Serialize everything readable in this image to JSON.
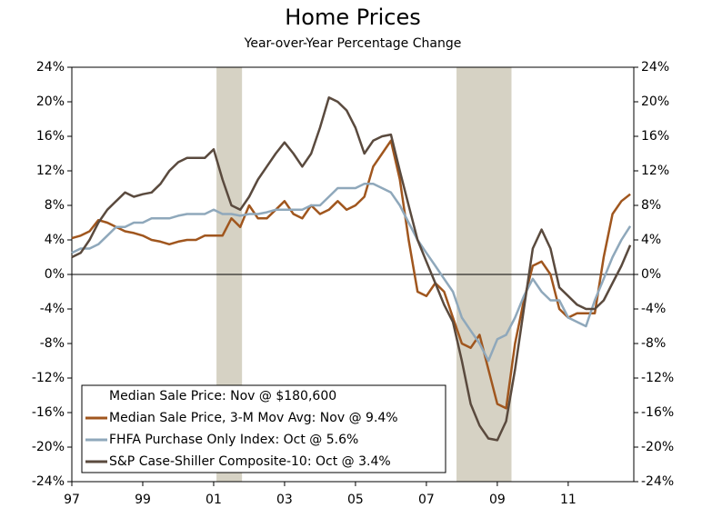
{
  "chart_data": {
    "type": "line",
    "title": "Home Prices",
    "subtitle": "Year-over-Year Percentage Change",
    "legend_note": "Median Sale Price: Nov @ $180,600",
    "x": [
      1997,
      1997.25,
      1997.5,
      1997.75,
      1998,
      1998.25,
      1998.5,
      1998.75,
      1999,
      1999.25,
      1999.5,
      1999.75,
      2000,
      2000.25,
      2000.5,
      2000.75,
      2001,
      2001.25,
      2001.5,
      2001.75,
      2002,
      2002.25,
      2002.5,
      2002.75,
      2003,
      2003.25,
      2003.5,
      2003.75,
      2004,
      2004.25,
      2004.5,
      2004.75,
      2005,
      2005.25,
      2005.5,
      2005.75,
      2006,
      2006.25,
      2006.5,
      2006.75,
      2007,
      2007.25,
      2007.5,
      2007.75,
      2008,
      2008.25,
      2008.5,
      2008.75,
      2009,
      2009.25,
      2009.5,
      2009.75,
      2010,
      2010.25,
      2010.5,
      2010.75,
      2011,
      2011.25,
      2011.5,
      2011.75,
      2012,
      2012.25,
      2012.5,
      2012.75
    ],
    "series": [
      {
        "name": "Median Sale Price, 3-M Mov Avg: Nov @ 9.4%",
        "color": "#a0561e",
        "values": [
          4.2,
          4.5,
          5,
          6.3,
          6,
          5.5,
          5,
          4.8,
          4.5,
          4,
          3.8,
          3.5,
          3.8,
          4,
          4,
          4.5,
          4.5,
          4.5,
          6.5,
          5.5,
          8,
          6.5,
          6.5,
          7.5,
          8.5,
          7,
          6.5,
          8,
          7,
          7.5,
          8.5,
          7.5,
          8,
          9,
          12.5,
          14,
          15.5,
          11,
          4,
          -2,
          -2.5,
          -1,
          -2,
          -5,
          -8,
          -8.5,
          -7,
          -11,
          -15,
          -15.5,
          -8,
          -3,
          1,
          1.5,
          0,
          -4,
          -5,
          -4.5,
          -4.5,
          -4.5,
          2,
          7,
          8.5,
          9.3
        ]
      },
      {
        "name": "FHFA Purchase Only Index: Oct @ 5.6%",
        "color": "#8fa8bb",
        "values": [
          2.5,
          3,
          3,
          3.5,
          4.5,
          5.5,
          5.5,
          6,
          6,
          6.5,
          6.5,
          6.5,
          6.8,
          7,
          7,
          7,
          7.5,
          7,
          7,
          6.8,
          7,
          7,
          7.2,
          7.5,
          7.5,
          7.5,
          7.5,
          8,
          8,
          9,
          10,
          10,
          10,
          10.5,
          10.5,
          10,
          9.5,
          8,
          6,
          4,
          2.5,
          1,
          -0.5,
          -2,
          -5,
          -6.5,
          -8,
          -10,
          -7.5,
          -7,
          -5,
          -2.5,
          -0.5,
          -2,
          -3,
          -3,
          -5,
          -5.5,
          -6,
          -3,
          -0.5,
          2,
          4,
          5.6
        ]
      },
      {
        "name": "S&P Case-Shiller Composite-10: Oct @ 3.4%",
        "color": "#5a4a3e",
        "values": [
          2,
          2.5,
          4,
          6,
          7.5,
          8.5,
          9.5,
          9,
          9.3,
          9.5,
          10.5,
          12,
          13,
          13.5,
          13.5,
          13.5,
          14.5,
          11,
          8,
          7.5,
          9,
          11,
          12.5,
          14,
          15.3,
          14,
          12.5,
          14,
          17,
          20.5,
          20,
          19,
          17,
          14,
          15.5,
          16,
          16.2,
          12,
          8,
          4,
          1.5,
          -1,
          -3.5,
          -5.5,
          -10,
          -15,
          -17.5,
          -19,
          -19.2,
          -17,
          -11,
          -4,
          3,
          5.2,
          3,
          -1.5,
          -2.5,
          -3.5,
          -4,
          -4,
          -3,
          -1,
          1,
          3.4
        ]
      }
    ],
    "shaded_regions": [
      [
        2001.08,
        2001.8
      ],
      [
        2007.85,
        2009.4
      ]
    ],
    "shade_color": "#d6d2c4",
    "xlim": [
      1997,
      2012.85
    ],
    "xticks": [
      {
        "value": 1997,
        "label": "97"
      },
      {
        "value": 1999,
        "label": "99"
      },
      {
        "value": 2001,
        "label": "01"
      },
      {
        "value": 2003,
        "label": "03"
      },
      {
        "value": 2005,
        "label": "05"
      },
      {
        "value": 2007,
        "label": "07"
      },
      {
        "value": 2009,
        "label": "09"
      },
      {
        "value": 2011,
        "label": "11"
      }
    ],
    "ylim": [
      -24,
      24
    ],
    "yticks": [
      {
        "value": -24,
        "label": "-24%"
      },
      {
        "value": -20,
        "label": "-20%"
      },
      {
        "value": -16,
        "label": "-16%"
      },
      {
        "value": -12,
        "label": "-12%"
      },
      {
        "value": -8,
        "label": "-8%"
      },
      {
        "value": -4,
        "label": "-4%"
      },
      {
        "value": 0,
        "label": "0%"
      },
      {
        "value": 4,
        "label": "4%"
      },
      {
        "value": 8,
        "label": "8%"
      },
      {
        "value": 12,
        "label": "12%"
      },
      {
        "value": 16,
        "label": "16%"
      },
      {
        "value": 20,
        "label": "20%"
      },
      {
        "value": 24,
        "label": "24%"
      }
    ]
  }
}
